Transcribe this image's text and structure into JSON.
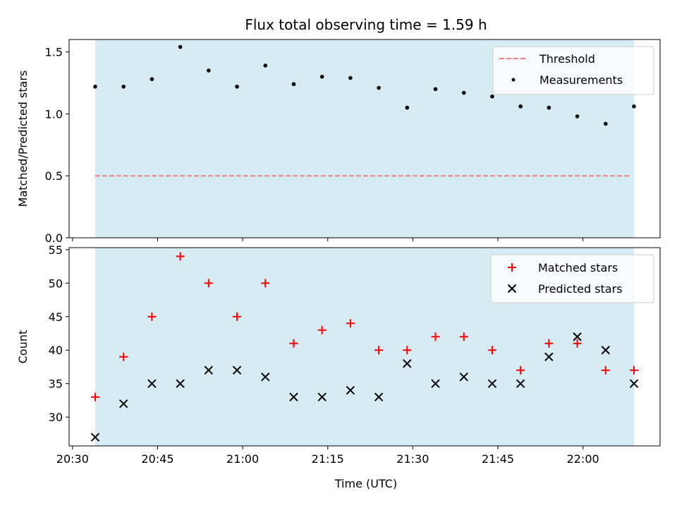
{
  "chart_data": {
    "title": "Flux total observing time = 1.59 h",
    "xlabel": "Time (UTC)",
    "x_tick_labels": [
      "20:30",
      "20:45",
      "21:00",
      "21:15",
      "21:30",
      "21:45",
      "22:00"
    ],
    "x_tick_minutes": [
      1230,
      1245,
      1260,
      1275,
      1290,
      1305,
      1320
    ],
    "times": [
      "20:34",
      "20:39",
      "20:44",
      "20:49",
      "20:54",
      "20:59",
      "21:04",
      "21:09",
      "21:14",
      "21:19",
      "21:24",
      "21:29",
      "21:34",
      "21:39",
      "21:44",
      "21:49",
      "21:54",
      "21:59",
      "22:04",
      "22:09"
    ],
    "times_minutes": [
      1234,
      1239,
      1244,
      1249,
      1254,
      1259,
      1264,
      1269,
      1274,
      1279,
      1284,
      1289,
      1294,
      1299,
      1304,
      1309,
      1314,
      1319,
      1324,
      1329
    ],
    "xlim_minutes": [
      1229.4,
      1333.6
    ],
    "shaded_span_minutes": [
      1234,
      1329
    ],
    "shade_color": "#add8e6",
    "panels": [
      {
        "type": "scatter",
        "ylabel": "Matched/Predicted stars",
        "ylim": [
          0.0,
          1.6
        ],
        "y_ticks": [
          0.0,
          0.5,
          1.0,
          1.5
        ],
        "y_tick_labels": [
          "0.0",
          "0.5",
          "1.0",
          "1.5"
        ],
        "threshold": {
          "name": "Threshold",
          "value": 0.5,
          "color": "#f08080"
        },
        "series": [
          {
            "name": "Measurements",
            "marker": "dot",
            "color": "#000000",
            "values": [
              1.22,
              1.22,
              1.28,
              1.54,
              1.35,
              1.22,
              1.39,
              1.24,
              1.3,
              1.29,
              1.21,
              1.05,
              1.2,
              1.17,
              1.14,
              1.06,
              1.05,
              0.98,
              0.92,
              1.06
            ]
          }
        ],
        "legend_position": "upper-right"
      },
      {
        "type": "scatter",
        "ylabel": "Count",
        "ylim": [
          25.7,
          55.3
        ],
        "y_ticks": [
          30,
          35,
          40,
          45,
          50,
          55
        ],
        "y_tick_labels": [
          "30",
          "35",
          "40",
          "45",
          "50",
          "55"
        ],
        "series": [
          {
            "name": "Matched stars",
            "marker": "plus",
            "color": "#ff0000",
            "values": [
              33,
              39,
              45,
              54,
              50,
              45,
              50,
              41,
              43,
              44,
              40,
              40,
              42,
              42,
              40,
              37,
              41,
              41,
              37,
              37
            ]
          },
          {
            "name": "Predicted stars",
            "marker": "x",
            "color": "#000000",
            "values": [
              27,
              32,
              35,
              35,
              37,
              37,
              36,
              33,
              33,
              34,
              33,
              38,
              35,
              36,
              35,
              35,
              39,
              42,
              40,
              35
            ]
          }
        ],
        "legend_position": "upper-right"
      }
    ]
  }
}
